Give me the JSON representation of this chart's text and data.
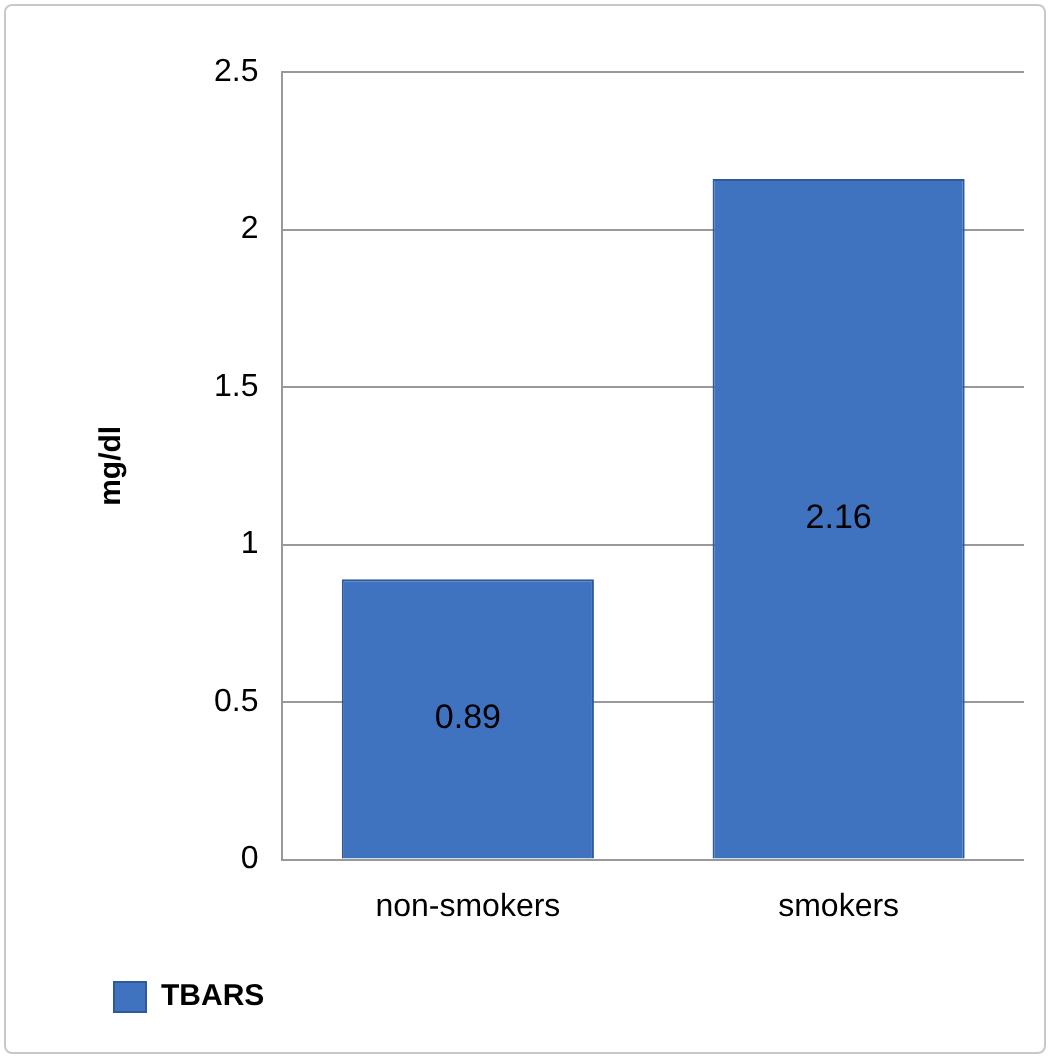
{
  "chart_data": {
    "type": "bar",
    "ylabel": "mg/dl",
    "categories": [
      "non-smokers",
      "smokers"
    ],
    "series": [
      {
        "name": "TBARS",
        "color": "#3f73c0",
        "values": [
          0.89,
          2.16
        ]
      }
    ],
    "ylim": [
      0,
      2.5
    ],
    "yticks": [
      0,
      0.5,
      1,
      1.5,
      2,
      2.5
    ],
    "grid": "y",
    "legend": "bottom left",
    "data_labels": true
  }
}
